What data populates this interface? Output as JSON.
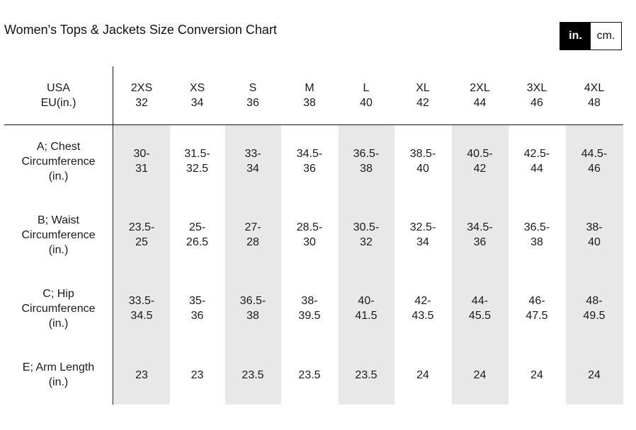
{
  "title": "Women's Tops & Jackets Size Conversion Chart",
  "unit_toggle": {
    "options": [
      "in.",
      "cm."
    ],
    "active": "in."
  },
  "table": {
    "header_label": "USA\nEU(in.)",
    "sizes": [
      {
        "us": "2XS",
        "eu": "32"
      },
      {
        "us": "XS",
        "eu": "34"
      },
      {
        "us": "S",
        "eu": "36"
      },
      {
        "us": "M",
        "eu": "38"
      },
      {
        "us": "L",
        "eu": "40"
      },
      {
        "us": "XL",
        "eu": "42"
      },
      {
        "us": "2XL",
        "eu": "44"
      },
      {
        "us": "3XL",
        "eu": "46"
      },
      {
        "us": "4XL",
        "eu": "48"
      }
    ],
    "rows": [
      {
        "label": "A; Chest\nCircumference\n(in.)",
        "values": [
          "30-\n31",
          "31.5-\n32.5",
          "33-\n34",
          "34.5-\n36",
          "36.5-\n38",
          "38.5-\n40",
          "40.5-\n42",
          "42.5-\n44",
          "44.5-\n46"
        ]
      },
      {
        "label": "B; Waist\nCircumference\n(in.)",
        "values": [
          "23.5-\n25",
          "25-\n26.5",
          "27-\n28",
          "28.5-\n30",
          "30.5-\n32",
          "32.5-\n34",
          "34.5-\n36",
          "36.5-\n38",
          "38-\n40"
        ]
      },
      {
        "label": "C; Hip\nCircumference\n(in.)",
        "values": [
          "33.5-\n34.5",
          "35-\n36",
          "36.5-\n38",
          "38-\n39.5",
          "40-\n41.5",
          "42-\n43.5",
          "44-\n45.5",
          "46-\n47.5",
          "48-\n49.5"
        ]
      },
      {
        "label": "E; Arm Length\n(in.)",
        "values": [
          "23",
          "23",
          "23.5",
          "23.5",
          "23.5",
          "24",
          "24",
          "24",
          "24"
        ]
      }
    ]
  }
}
